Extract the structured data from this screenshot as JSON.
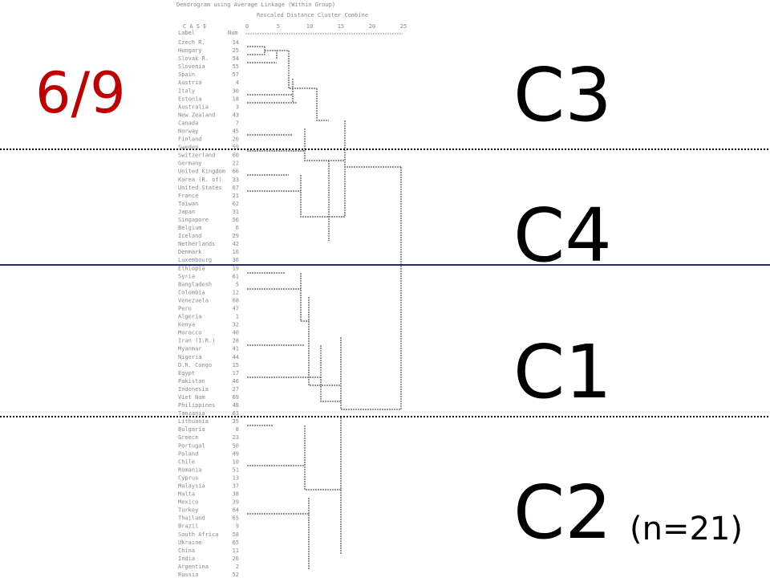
{
  "slide": {
    "fraction": "6/9",
    "clusters": [
      "C3",
      "C4",
      "C1",
      "C2"
    ],
    "note": "(n=21)"
  },
  "dendrogram": {
    "title": "Dendrogram using Average Linkage (Within Group)",
    "subtitle": "Rescaled Distance Cluster Combine",
    "case_header": "C A S E",
    "label_header": "Label",
    "num_header": "Num",
    "scale": [
      0,
      5,
      10,
      15,
      20,
      25
    ],
    "cases": [
      {
        "label": "Czech R.",
        "num": 14
      },
      {
        "label": "Hungary",
        "num": 25
      },
      {
        "label": "Slovak R.",
        "num": 54
      },
      {
        "label": "Slovenia",
        "num": 55
      },
      {
        "label": "Spain",
        "num": 57
      },
      {
        "label": "Austria",
        "num": 4
      },
      {
        "label": "Italy",
        "num": 30
      },
      {
        "label": "Estonia",
        "num": 18
      },
      {
        "label": "Australia",
        "num": 3
      },
      {
        "label": "New Zealand",
        "num": 43
      },
      {
        "label": "Canada",
        "num": 7
      },
      {
        "label": "Norway",
        "num": 45
      },
      {
        "label": "Finland",
        "num": 20
      },
      {
        "label": "Sweden",
        "num": 59
      },
      {
        "label": "Switzerland",
        "num": 60
      },
      {
        "label": "Germany",
        "num": 22
      },
      {
        "label": "United Kingdom",
        "num": 66
      },
      {
        "label": "Korea (R. of)",
        "num": 33
      },
      {
        "label": "United States",
        "num": 67
      },
      {
        "label": "France",
        "num": 21
      },
      {
        "label": "Taiwan",
        "num": 62
      },
      {
        "label": "Japan",
        "num": 31
      },
      {
        "label": "Singapore",
        "num": 56
      },
      {
        "label": "Belgium",
        "num": 6
      },
      {
        "label": "Iceland",
        "num": 29
      },
      {
        "label": "Netherlands",
        "num": 42
      },
      {
        "label": "Denmark",
        "num": 16
      },
      {
        "label": "Luxembourg",
        "num": 36
      },
      {
        "label": "Ethiopia",
        "num": 19
      },
      {
        "label": "Syria",
        "num": 61
      },
      {
        "label": "Bangladesh",
        "num": 5
      },
      {
        "label": "Colombia",
        "num": 12
      },
      {
        "label": "Venezuela",
        "num": 68
      },
      {
        "label": "Peru",
        "num": 47
      },
      {
        "label": "Algeria",
        "num": 1
      },
      {
        "label": "Kenya",
        "num": 32
      },
      {
        "label": "Morocco",
        "num": 40
      },
      {
        "label": "Iran (I.R.)",
        "num": 28
      },
      {
        "label": "Myanmar",
        "num": 41
      },
      {
        "label": "Nigeria",
        "num": 44
      },
      {
        "label": "D.R. Congo",
        "num": 15
      },
      {
        "label": "Egypt",
        "num": 17
      },
      {
        "label": "Pakistan",
        "num": 46
      },
      {
        "label": "Indonesia",
        "num": 27
      },
      {
        "label": "Viet Nam",
        "num": 69
      },
      {
        "label": "Philippines",
        "num": 48
      },
      {
        "label": "Tanzania",
        "num": 63
      },
      {
        "label": "Lithuania",
        "num": 35
      },
      {
        "label": "Bulgaria",
        "num": 8
      },
      {
        "label": "Greece",
        "num": 23
      },
      {
        "label": "Portugal",
        "num": 50
      },
      {
        "label": "Poland",
        "num": 49
      },
      {
        "label": "Chile",
        "num": 10
      },
      {
        "label": "Romania",
        "num": 51
      },
      {
        "label": "Cyprus",
        "num": 13
      },
      {
        "label": "Malaysia",
        "num": 37
      },
      {
        "label": "Malta",
        "num": 38
      },
      {
        "label": "Mexico",
        "num": 39
      },
      {
        "label": "Turkey",
        "num": 64
      },
      {
        "label": "Thailand",
        "num": 65
      },
      {
        "label": "Brazil",
        "num": 9
      },
      {
        "label": "South Africa",
        "num": 58
      },
      {
        "label": "Ukraine",
        "num": 65
      },
      {
        "label": "China",
        "num": 11
      },
      {
        "label": "India",
        "num": 26
      },
      {
        "label": "Argentina",
        "num": 2
      },
      {
        "label": "Russia",
        "num": 52
      }
    ]
  }
}
